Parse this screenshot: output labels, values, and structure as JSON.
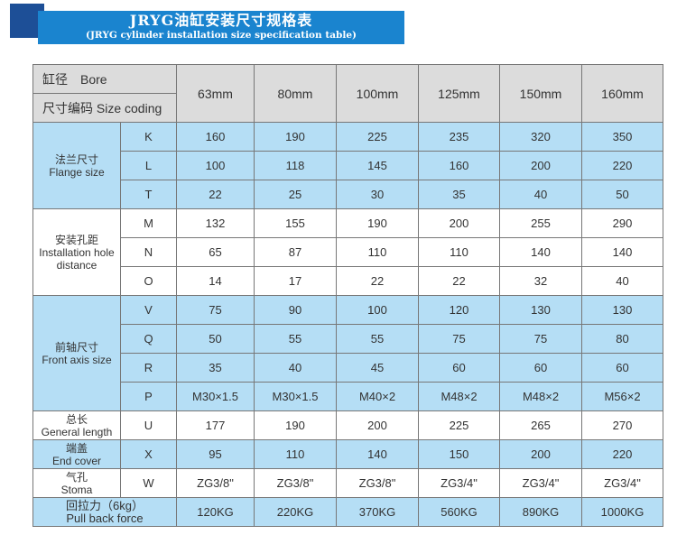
{
  "title": {
    "main": "JRYG油缸安装尺寸规格表",
    "sub": "(JRYG cylinder installation size specification table)"
  },
  "header": {
    "bore": "缸径　Bore",
    "coding": "尺寸编码  Size coding",
    "sizes": [
      "63mm",
      "80mm",
      "100mm",
      "125mm",
      "150mm",
      "160mm"
    ]
  },
  "groups": [
    {
      "cn": "法兰尺寸",
      "en": "Flange size",
      "rows": [
        {
          "code": "K",
          "values": [
            "160",
            "190",
            "225",
            "235",
            "320",
            "350"
          ]
        },
        {
          "code": "L",
          "values": [
            "100",
            "118",
            "145",
            "160",
            "200",
            "220"
          ]
        },
        {
          "code": "T",
          "values": [
            "22",
            "25",
            "30",
            "35",
            "40",
            "50"
          ]
        }
      ]
    },
    {
      "cn": "安装孔距",
      "en": "Installation hole distance",
      "rows": [
        {
          "code": "M",
          "values": [
            "132",
            "155",
            "190",
            "200",
            "255",
            "290"
          ]
        },
        {
          "code": "N",
          "values": [
            "65",
            "87",
            "110",
            "110",
            "140",
            "140"
          ]
        },
        {
          "code": "O",
          "values": [
            "14",
            "17",
            "22",
            "22",
            "32",
            "40"
          ]
        }
      ]
    },
    {
      "cn": "前轴尺寸",
      "en": "Front axis size",
      "rows": [
        {
          "code": "V",
          "values": [
            "75",
            "90",
            "100",
            "120",
            "130",
            "130"
          ]
        },
        {
          "code": "Q",
          "values": [
            "50",
            "55",
            "55",
            "75",
            "75",
            "80"
          ]
        },
        {
          "code": "R",
          "values": [
            "35",
            "40",
            "45",
            "60",
            "60",
            "60"
          ]
        },
        {
          "code": "P",
          "values": [
            "M30×1.5",
            "M30×1.5",
            "M40×2",
            "M48×2",
            "M48×2",
            "M56×2"
          ]
        }
      ]
    },
    {
      "cn": "总长",
      "en": "General length",
      "rows": [
        {
          "code": "U",
          "values": [
            "177",
            "190",
            "200",
            "225",
            "265",
            "270"
          ]
        }
      ]
    },
    {
      "cn": "端盖",
      "en": "End cover",
      "rows": [
        {
          "code": "X",
          "values": [
            "95",
            "110",
            "140",
            "150",
            "200",
            "220"
          ]
        }
      ]
    },
    {
      "cn": "气孔",
      "en": "Stoma",
      "rows": [
        {
          "code": "W",
          "values": [
            "ZG3/8\"",
            "ZG3/8\"",
            "ZG3/8\"",
            "ZG3/4\"",
            "ZG3/4\"",
            "ZG3/4\""
          ]
        }
      ]
    }
  ],
  "pull": {
    "cn": "回拉力（6kg）",
    "en": "Pull back force",
    "values": [
      "120KG",
      "220KG",
      "370KG",
      "560KG",
      "890KG",
      "1000KG"
    ]
  },
  "colors": {
    "header": "#dcdcdc",
    "blue": "#b5def5",
    "title_bar": "#1a84cf",
    "title_square": "#1d4f97"
  }
}
